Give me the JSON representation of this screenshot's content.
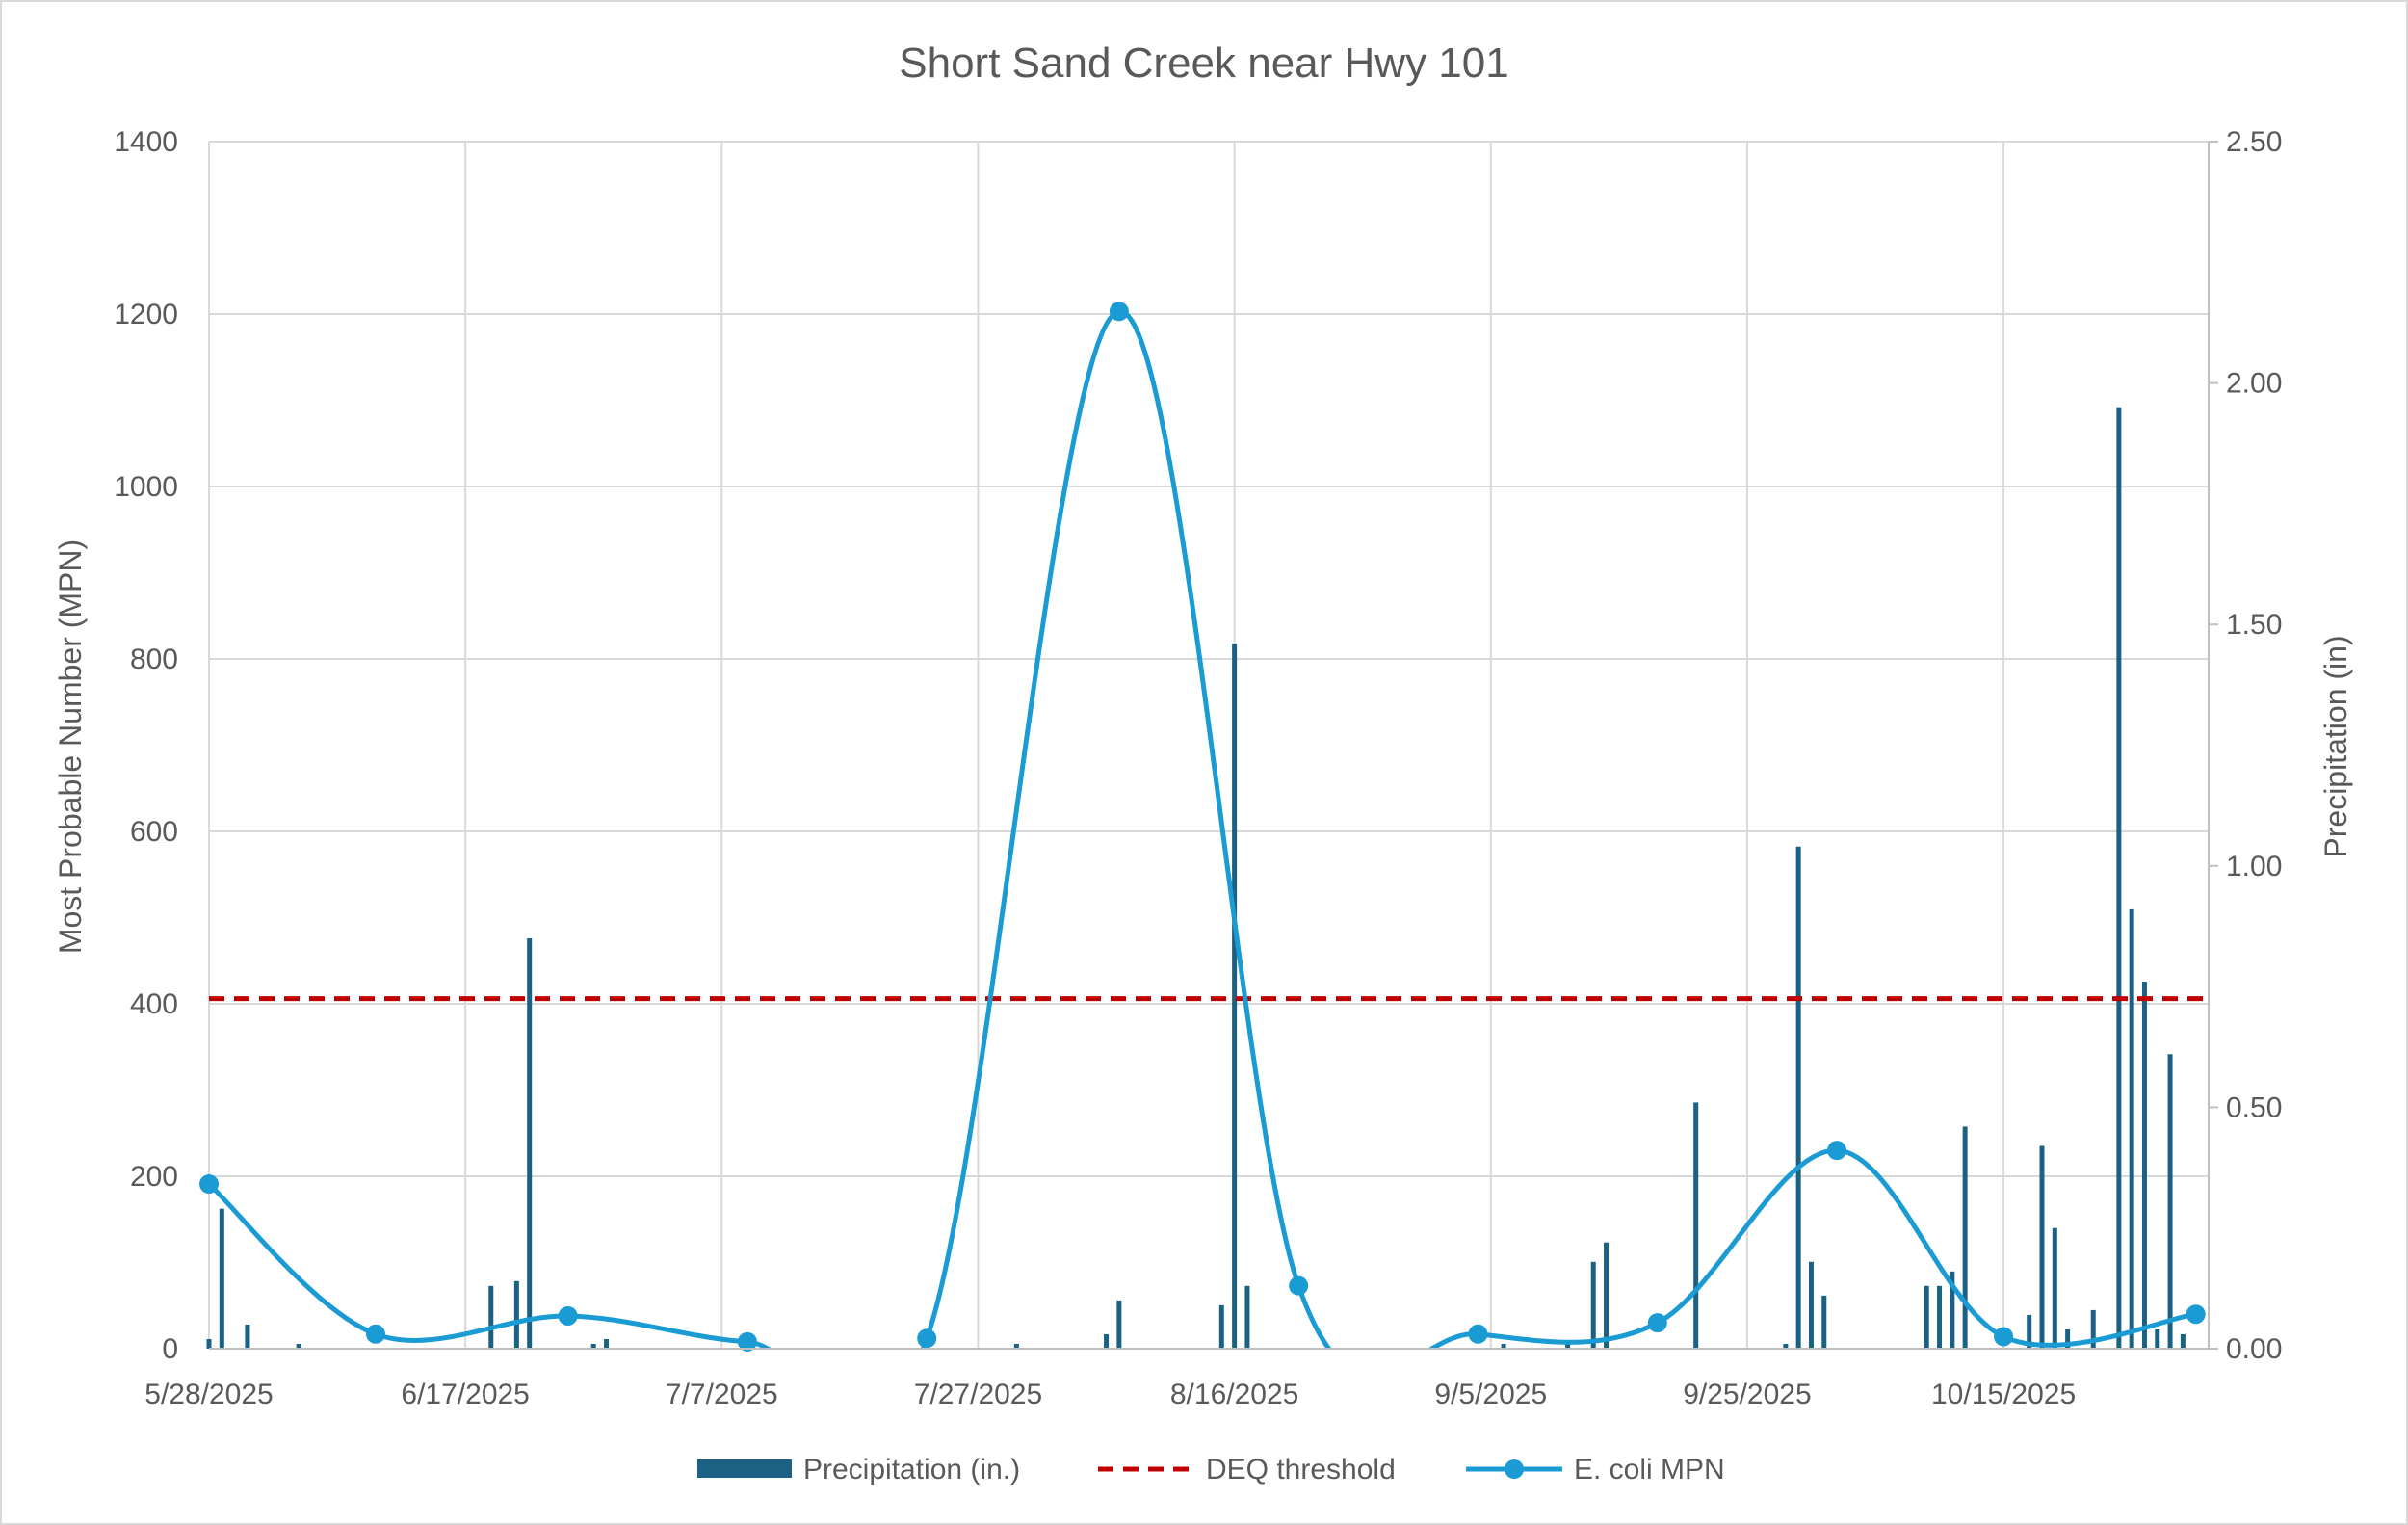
{
  "chart_data": {
    "type": "bar+line",
    "title": "Short Sand Creek near Hwy 101",
    "y_left": {
      "label": "Most Probable Number (MPN)",
      "min": 0,
      "max": 1400,
      "ticks": [
        "0",
        "200",
        "400",
        "600",
        "800",
        "1000",
        "1200",
        "1400"
      ]
    },
    "y_right": {
      "label": "Precipitation (in)",
      "min": 0,
      "max": 2.5,
      "ticks": [
        "0.00",
        "0.50",
        "1.00",
        "1.50",
        "2.00",
        "2.50"
      ]
    },
    "x_axis": {
      "type": "date",
      "start": "2025-05-28",
      "end": "2025-10-31",
      "tick_labels": [
        "5/28/2025",
        "6/17/2025",
        "7/7/2025",
        "7/27/2025",
        "8/16/2025",
        "9/5/2025",
        "9/25/2025",
        "10/15/2025"
      ],
      "tick_dates": [
        "2025-05-28",
        "2025-06-17",
        "2025-07-07",
        "2025-07-27",
        "2025-08-16",
        "2025-09-05",
        "2025-09-25",
        "2025-10-15"
      ]
    },
    "grid": true,
    "legend": {
      "position": "bottom",
      "entries": [
        "Precipitation (in.)",
        "DEQ threshold",
        "E. coli MPN"
      ]
    },
    "colors": {
      "precipitation": "#1b6183",
      "threshold": "#c00000",
      "ecoli": "#1b9bd4",
      "grid": "#d9d9d9",
      "text": "#595959"
    },
    "series": [
      {
        "name": "Precipitation (in.)",
        "type": "bar",
        "axis": "right",
        "points": [
          [
            "2025-05-28",
            0.02
          ],
          [
            "2025-05-29",
            0.29
          ],
          [
            "2025-05-31",
            0.05
          ],
          [
            "2025-06-04",
            0.01
          ],
          [
            "2025-06-19",
            0.13
          ],
          [
            "2025-06-21",
            0.14
          ],
          [
            "2025-06-22",
            0.85
          ],
          [
            "2025-06-27",
            0.01
          ],
          [
            "2025-06-28",
            0.02
          ],
          [
            "2025-07-30",
            0.01
          ],
          [
            "2025-08-06",
            0.03
          ],
          [
            "2025-08-07",
            0.1
          ],
          [
            "2025-08-15",
            0.09
          ],
          [
            "2025-08-16",
            1.46
          ],
          [
            "2025-08-17",
            0.13
          ],
          [
            "2025-09-06",
            0.01
          ],
          [
            "2025-09-11",
            0.01
          ],
          [
            "2025-09-13",
            0.18
          ],
          [
            "2025-09-14",
            0.22
          ],
          [
            "2025-09-21",
            0.51
          ],
          [
            "2025-09-28",
            0.01
          ],
          [
            "2025-09-29",
            1.04
          ],
          [
            "2025-09-30",
            0.18
          ],
          [
            "2025-10-01",
            0.11
          ],
          [
            "2025-10-09",
            0.13
          ],
          [
            "2025-10-10",
            0.13
          ],
          [
            "2025-10-11",
            0.16
          ],
          [
            "2025-10-12",
            0.46
          ],
          [
            "2025-10-17",
            0.07
          ],
          [
            "2025-10-18",
            0.42
          ],
          [
            "2025-10-19",
            0.25
          ],
          [
            "2025-10-20",
            0.04
          ],
          [
            "2025-10-22",
            0.08
          ],
          [
            "2025-10-24",
            1.95
          ],
          [
            "2025-10-25",
            0.91
          ],
          [
            "2025-10-26",
            0.76
          ],
          [
            "2025-10-27",
            0.04
          ],
          [
            "2025-10-28",
            0.61
          ],
          [
            "2025-10-29",
            0.03
          ]
        ]
      },
      {
        "name": "DEQ threshold",
        "type": "line-dashed",
        "axis": "left",
        "value": 406
      },
      {
        "name": "E. coli MPN",
        "type": "line-smooth-markers",
        "axis": "left",
        "points": [
          [
            "2025-05-28",
            191
          ],
          [
            "2025-06-10",
            17
          ],
          [
            "2025-06-25",
            38
          ],
          [
            "2025-07-09",
            8
          ],
          [
            "2025-07-23",
            12
          ],
          [
            "2025-08-07",
            1203
          ],
          [
            "2025-08-21",
            73
          ],
          [
            "2025-09-04",
            17
          ],
          [
            "2025-09-18",
            30
          ],
          [
            "2025-10-02",
            230
          ],
          [
            "2025-10-15",
            14
          ],
          [
            "2025-10-30",
            40
          ]
        ]
      }
    ]
  }
}
